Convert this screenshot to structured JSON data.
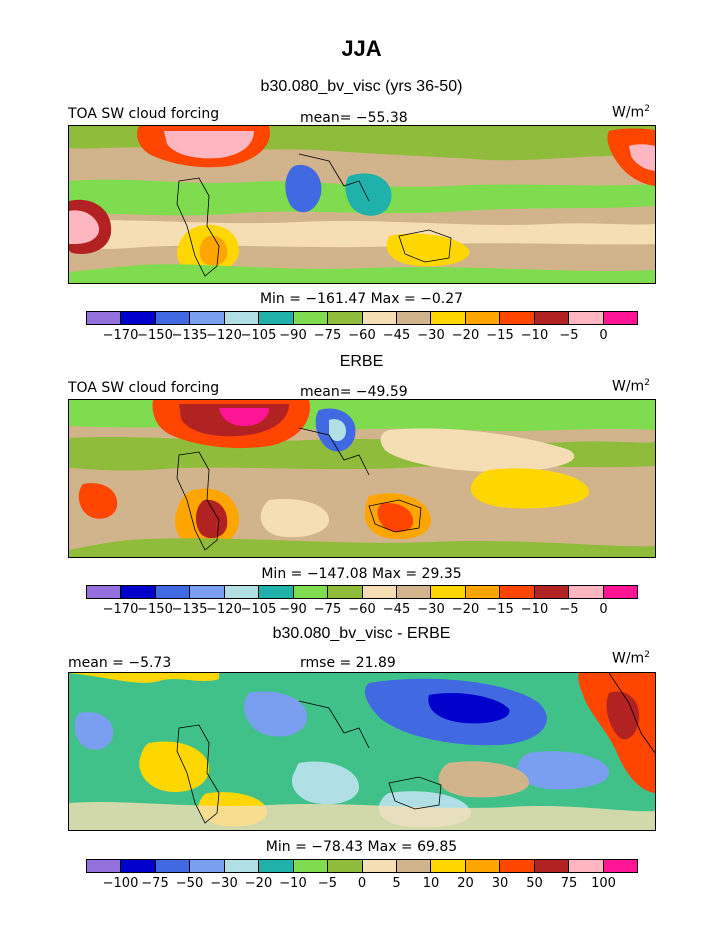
{
  "title": "JJA",
  "units": "W/m",
  "units_sup": "2",
  "panels": [
    {
      "title": "b30.080_bv_visc (yrs 36-50)",
      "left_label": "TOA SW cloud forcing",
      "center_label": "mean= −55.38",
      "range_label": "Min = −161.47 Max =  −0.27"
    },
    {
      "title": "ERBE",
      "left_label": "TOA SW cloud forcing",
      "center_label": "mean= −49.59",
      "range_label": "Min = −147.08 Max =  29.35"
    },
    {
      "title": "b30.080_bv_visc - ERBE",
      "left_label": "mean =  −5.73",
      "center_label": "rmse =  21.89",
      "range_label": "Min = −78.43 Max =  69.85"
    }
  ],
  "colorbar_abs": {
    "colors": [
      "#9370db",
      "#0000cd",
      "#4169e1",
      "#7b9ff0",
      "#b0e0e6",
      "#20b2aa",
      "#7fdc4e",
      "#8fbc3a",
      "#f5deb3",
      "#d2b48c",
      "#ffd700",
      "#ffa500",
      "#ff4500",
      "#b22222",
      "#ffb6c1",
      "#ff1493"
    ],
    "ticks": [
      "−170",
      "−150",
      "−135",
      "−120",
      "−105",
      "−90",
      "−75",
      "−60",
      "−45",
      "−30",
      "−20",
      "−15",
      "−10",
      "−5",
      "0"
    ]
  },
  "colorbar_diff": {
    "colors": [
      "#9370db",
      "#0000cd",
      "#4169e1",
      "#7b9ff0",
      "#b0e0e6",
      "#20b2aa",
      "#7fdc4e",
      "#8fbc3a",
      "#f5deb3",
      "#d2b48c",
      "#ffd700",
      "#ffa500",
      "#ff4500",
      "#b22222",
      "#ffb6c1",
      "#ff1493"
    ],
    "ticks": [
      "−100",
      "−75",
      "−50",
      "−30",
      "−20",
      "−10",
      "−5",
      "0",
      "5",
      "10",
      "20",
      "30",
      "50",
      "75",
      "100"
    ]
  },
  "chart_data": [
    {
      "type": "heatmap",
      "title": "b30.080_bv_visc (yrs 36-50)",
      "variable": "TOA SW cloud forcing",
      "units": "W/m2",
      "mean": -55.38,
      "min": -161.47,
      "max": -0.27,
      "contour_levels": [
        -170,
        -150,
        -135,
        -120,
        -105,
        -90,
        -75,
        -60,
        -45,
        -30,
        -20,
        -15,
        -10,
        -5,
        0
      ]
    },
    {
      "type": "heatmap",
      "title": "ERBE",
      "variable": "TOA SW cloud forcing",
      "units": "W/m2",
      "mean": -49.59,
      "min": -147.08,
      "max": 29.35,
      "contour_levels": [
        -170,
        -150,
        -135,
        -120,
        -105,
        -90,
        -75,
        -60,
        -45,
        -30,
        -20,
        -15,
        -10,
        -5,
        0
      ]
    },
    {
      "type": "heatmap",
      "title": "b30.080_bv_visc - ERBE",
      "units": "W/m2",
      "mean": -5.73,
      "rmse": 21.89,
      "min": -78.43,
      "max": 69.85,
      "contour_levels": [
        -100,
        -75,
        -50,
        -30,
        -20,
        -10,
        -5,
        0,
        5,
        10,
        20,
        30,
        50,
        75,
        100
      ]
    }
  ]
}
